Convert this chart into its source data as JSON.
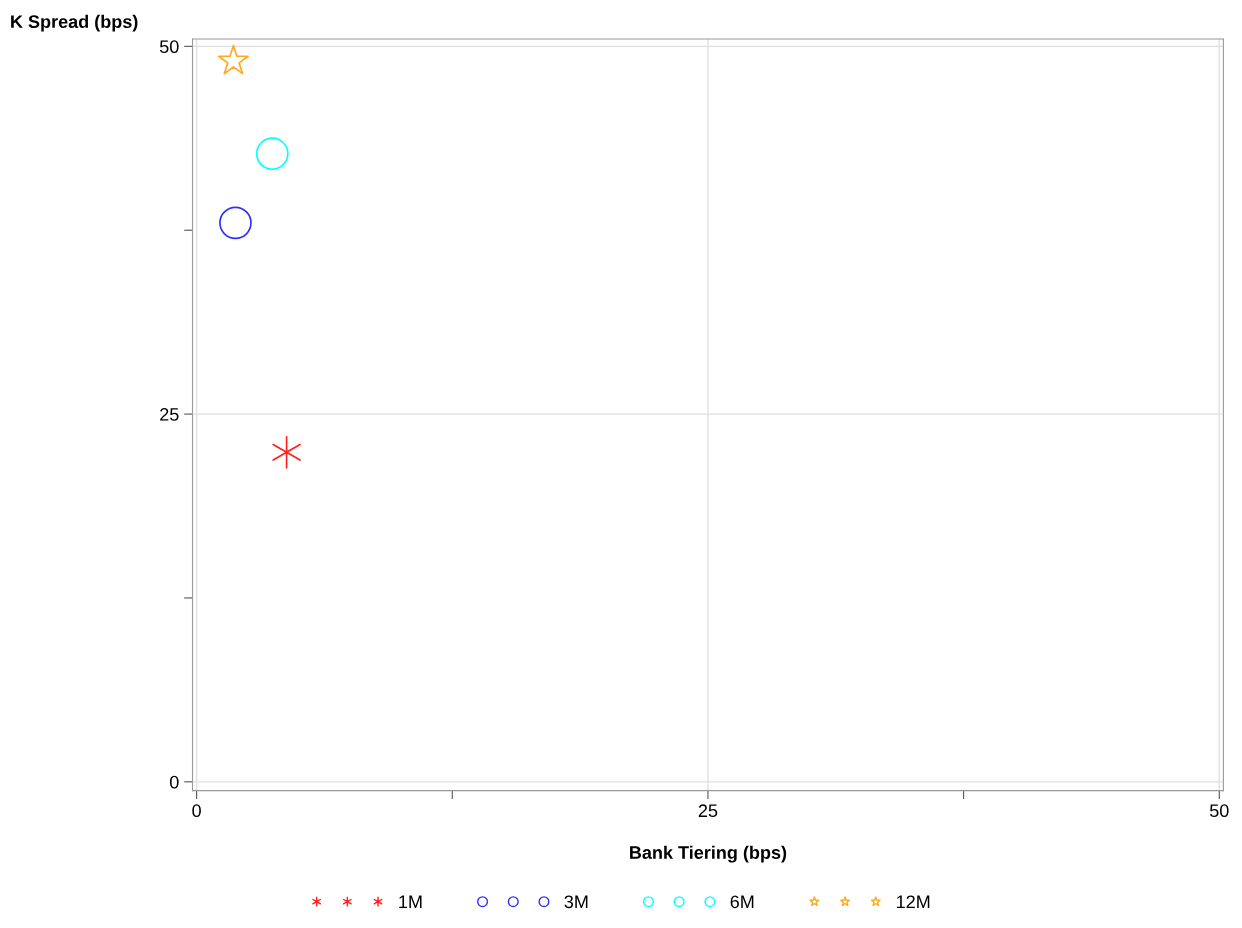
{
  "chart_data": {
    "type": "scatter",
    "xlabel": "Bank Tiering (bps)",
    "ylabel": "K Spread (bps)",
    "xlim": [
      -0.2,
      50.2
    ],
    "ylim": [
      -0.6,
      50.5
    ],
    "xticks": [
      0,
      {
        "value": 12.5,
        "label": null
      },
      25,
      {
        "value": 37.5,
        "label": null
      },
      50
    ],
    "yticks": [
      0,
      {
        "value": 12.5,
        "label": null
      },
      25,
      {
        "value": 37.5,
        "label": null
      },
      50
    ],
    "grid": true,
    "legend": "bottom",
    "series": [
      {
        "name": "1M",
        "color": "#ff2020",
        "marker": "cross",
        "x": [
          4.4
        ],
        "values": [
          22.4
        ]
      },
      {
        "name": "3M",
        "color": "#3030ff",
        "marker": "circle",
        "x": [
          1.9
        ],
        "values": [
          38.0
        ]
      },
      {
        "name": "6M",
        "color": "#00ffff",
        "marker": "circle",
        "x": [
          3.7
        ],
        "values": [
          42.7
        ]
      },
      {
        "name": "12M",
        "color": "#ffaa20",
        "marker": "star",
        "x": [
          1.8
        ],
        "values": [
          49.0
        ]
      }
    ]
  }
}
